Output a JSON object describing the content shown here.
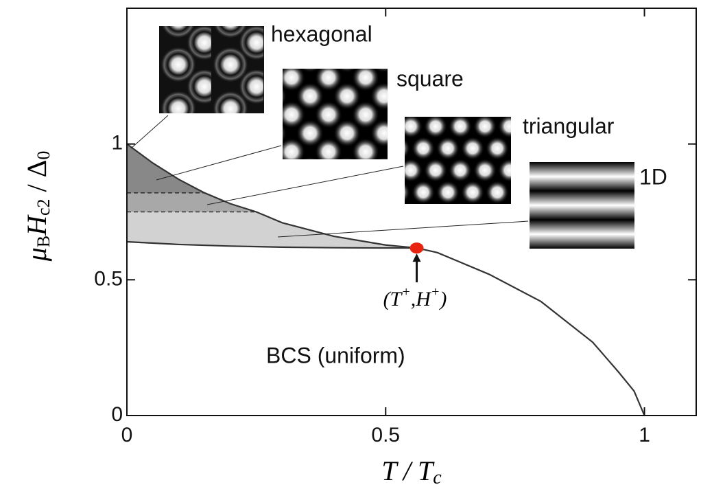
{
  "chart_data": {
    "type": "line",
    "xlabel": [
      "T / T",
      "c"
    ],
    "ylabel": [
      "μ",
      "B",
      "H",
      "c2",
      " / Δ",
      "0"
    ],
    "xlim": [
      0,
      1.1
    ],
    "ylim": [
      0,
      1.5
    ],
    "xticks": [
      0,
      0.5,
      1
    ],
    "yticks": [
      0,
      0.5,
      1
    ],
    "series": [
      {
        "color": "#333333",
        "x": [
          0,
          0.05,
          0.1,
          0.15,
          0.2,
          0.25,
          0.3,
          0.4,
          0.5,
          0.56,
          0.6,
          0.7,
          0.8,
          0.9,
          0.95,
          0.98,
          1.0
        ],
        "values": [
          1.0,
          0.93,
          0.87,
          0.82,
          0.78,
          0.75,
          0.71,
          0.66,
          0.628,
          0.617,
          0.6,
          0.52,
          0.42,
          0.27,
          0.16,
          0.09,
          0
        ]
      },
      {
        "color": "#333333",
        "x": [
          0,
          0.1,
          0.2,
          0.3,
          0.4,
          0.5,
          0.56
        ],
        "values": [
          0.64,
          0.63,
          0.624,
          0.62,
          0.618,
          0.617,
          0.617
        ]
      },
      {
        "color": "#333333",
        "dashed": true,
        "x": [
          0,
          0.15
        ],
        "values": [
          0.82,
          0.82
        ]
      },
      {
        "color": "#333333",
        "dashed": true,
        "x": [
          0,
          0.25
        ],
        "values": [
          0.75,
          0.75
        ]
      }
    ],
    "region_colors": [
      "#d2d2d2",
      "#a8a8a8",
      "#888888"
    ],
    "point": {
      "x": 0.56,
      "y": 0.617,
      "color": "#e8230f",
      "label": [
        "(T",
        "+",
        ",H",
        "+",
        ")"
      ]
    },
    "annotations": [
      "hexagonal",
      "square",
      "triangular",
      "1D",
      "BCS (uniform)"
    ]
  }
}
